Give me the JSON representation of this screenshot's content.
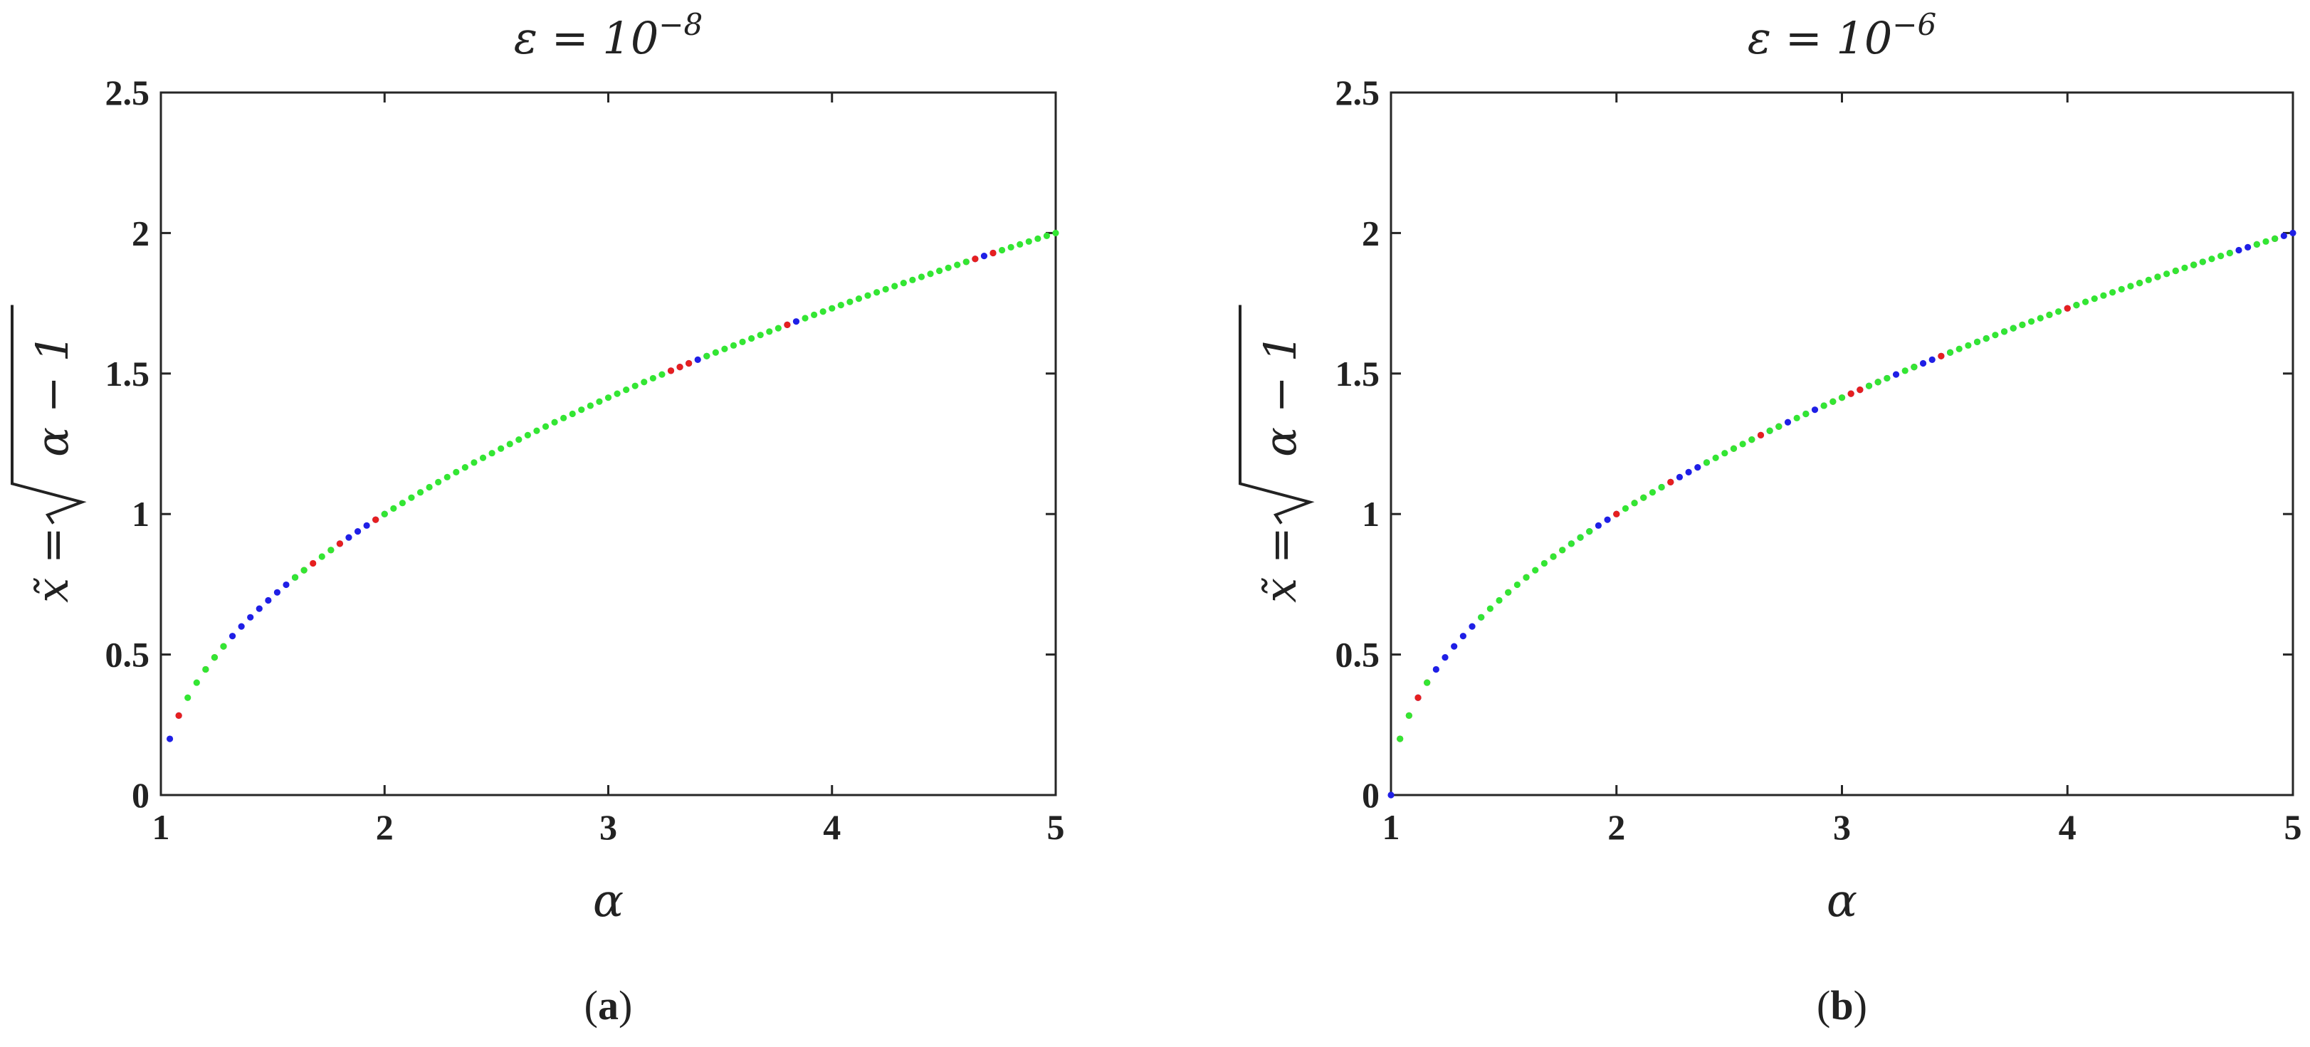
{
  "chart_data": [
    {
      "type": "scatter",
      "title": "ε = 10−8",
      "title_parts": {
        "base": "ε = 10",
        "exponent": "−8"
      },
      "xlabel": "α",
      "ylabel": "x̃ = √(α − 1)",
      "ylabel_parts": {
        "lhs": "x̃ = ",
        "radicand": "α − 1"
      },
      "caption": {
        "open": "(",
        "letter": "a",
        "close": ")"
      },
      "xlim": [
        1,
        5
      ],
      "ylim": [
        0,
        2.5
      ],
      "xticks": [
        "1",
        "2",
        "3",
        "4",
        "5"
      ],
      "yticks": [
        "0",
        "0.5",
        "1",
        "1.5",
        "2",
        "2.5"
      ],
      "grid": false,
      "legend": "none",
      "curve": "x = sqrt(alpha - 1)",
      "colors": {
        "blue": "#1f1fe6",
        "red": "#e61f1f",
        "green": "#33e633"
      },
      "point_spacing_alpha": 0.04,
      "series": [
        {
          "color": "blue",
          "alpha_ranges": [
            [
              1.04,
              1.08
            ],
            [
              1.32,
              1.6
            ],
            [
              1.8,
              2.0
            ],
            [
              3.28,
              3.44
            ],
            [
              3.8,
              3.84
            ],
            [
              4.64,
              4.72
            ]
          ]
        },
        {
          "color": "red",
          "alpha_ranges": [
            [
              1.08,
              1.08
            ],
            [
              1.2,
              1.2
            ],
            [
              1.24,
              1.24
            ],
            [
              1.28,
              1.28
            ],
            [
              1.64,
              1.64
            ],
            [
              1.68,
              1.68
            ],
            [
              1.76,
              1.76
            ],
            [
              1.8,
              1.8
            ],
            [
              1.96,
              1.96
            ],
            [
              3.28,
              3.28
            ],
            [
              3.32,
              3.32
            ],
            [
              3.36,
              3.36
            ],
            [
              3.8,
              3.8
            ],
            [
              4.6,
              4.6
            ],
            [
              4.64,
              4.64
            ],
            [
              4.72,
              4.72
            ]
          ]
        },
        {
          "color": "green",
          "alpha_ranges": [
            [
              1.12,
              1.2
            ],
            [
              1.24,
              1.28
            ],
            [
              1.6,
              1.64
            ],
            [
              1.72,
              1.76
            ],
            [
              2.0,
              3.24
            ],
            [
              3.44,
              3.76
            ],
            [
              3.88,
              4.6
            ],
            [
              4.76,
              5.0
            ]
          ]
        }
      ]
    },
    {
      "type": "scatter",
      "title": "ε = 10−6",
      "title_parts": {
        "base": "ε = 10",
        "exponent": "−6"
      },
      "xlabel": "α",
      "ylabel": "x̃ = √(α − 1)",
      "ylabel_parts": {
        "lhs": "x̃ = ",
        "radicand": "α − 1"
      },
      "caption": {
        "open": "(",
        "letter": "b",
        "close": ")"
      },
      "xlim": [
        1,
        5
      ],
      "ylim": [
        0,
        2.5
      ],
      "xticks": [
        "1",
        "2",
        "3",
        "4",
        "5"
      ],
      "yticks": [
        "0",
        "0.5",
        "1",
        "1.5",
        "2",
        "2.5"
      ],
      "grid": false,
      "legend": "none",
      "curve": "x = sqrt(alpha - 1)",
      "colors": {
        "blue": "#1f1fe6",
        "red": "#e61f1f",
        "green": "#33e633"
      },
      "point_spacing_alpha": 0.04,
      "series": [
        {
          "color": "blue",
          "alpha_ranges": [
            [
              1.0,
              1.0
            ],
            [
              1.12,
              1.12
            ],
            [
              1.2,
              1.4
            ],
            [
              1.8,
              1.84
            ],
            [
              1.88,
              2.0
            ],
            [
              2.2,
              2.4
            ],
            [
              2.64,
              2.76
            ],
            [
              2.84,
              2.92
            ],
            [
              3.04,
              3.16
            ],
            [
              3.2,
              3.24
            ],
            [
              3.32,
              3.36
            ],
            [
              3.4,
              3.48
            ],
            [
              3.6,
              3.64
            ],
            [
              3.72,
              3.76
            ],
            [
              4.0,
              4.04
            ],
            [
              4.56,
              4.6
            ],
            [
              4.72,
              4.84
            ],
            [
              4.92,
              5.0
            ]
          ]
        },
        {
          "color": "red",
          "alpha_ranges": [
            [
              1.04,
              1.04
            ],
            [
              1.08,
              1.08
            ],
            [
              1.12,
              1.12
            ],
            [
              1.16,
              1.16
            ],
            [
              1.52,
              1.52
            ],
            [
              1.6,
              1.6
            ],
            [
              1.72,
              1.72
            ],
            [
              1.76,
              1.76
            ],
            [
              2.0,
              2.0
            ],
            [
              2.08,
              2.08
            ],
            [
              2.12,
              2.12
            ],
            [
              2.24,
              2.24
            ],
            [
              2.52,
              2.52
            ],
            [
              2.6,
              2.6
            ],
            [
              2.64,
              2.64
            ],
            [
              2.72,
              2.72
            ],
            [
              2.96,
              2.96
            ],
            [
              3.0,
              3.0
            ],
            [
              3.04,
              3.04
            ],
            [
              3.08,
              3.08
            ],
            [
              3.16,
              3.16
            ],
            [
              3.32,
              3.32
            ],
            [
              3.44,
              3.44
            ],
            [
              3.8,
              3.8
            ],
            [
              3.92,
              3.92
            ],
            [
              4.0,
              4.0
            ],
            [
              4.32,
              4.32
            ],
            [
              4.4,
              4.4
            ],
            [
              4.48,
              4.48
            ],
            [
              4.56,
              4.56
            ],
            [
              4.92,
              4.92
            ]
          ]
        },
        {
          "color": "green",
          "alpha_ranges": [
            [
              1.04,
              1.08
            ],
            [
              1.16,
              1.16
            ],
            [
              1.4,
              1.52
            ],
            [
              1.56,
              1.6
            ],
            [
              1.64,
              1.72
            ],
            [
              1.76,
              1.8
            ],
            [
              1.84,
              1.88
            ],
            [
              2.04,
              2.2
            ],
            [
              2.4,
              2.6
            ],
            [
              2.68,
              2.72
            ],
            [
              2.8,
              2.84
            ],
            [
              2.92,
              3.0
            ],
            [
              3.12,
              3.2
            ],
            [
              3.28,
              3.32
            ],
            [
              3.48,
              3.6
            ],
            [
              3.64,
              3.72
            ],
            [
              3.76,
              3.96
            ],
            [
              4.04,
              4.56
            ],
            [
              4.6,
              4.72
            ],
            [
              4.84,
              4.92
            ]
          ]
        }
      ]
    }
  ]
}
